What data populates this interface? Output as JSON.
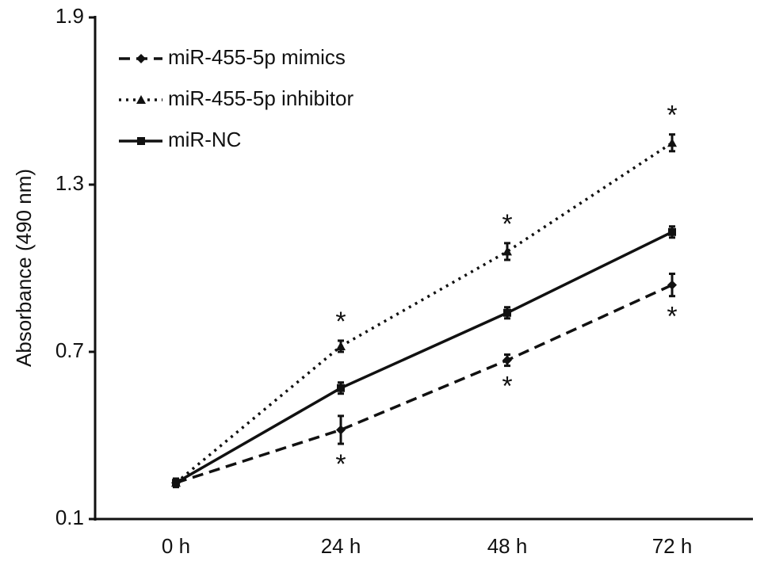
{
  "chart_data": {
    "type": "line",
    "y_label": "Absorbance (490 nm)",
    "categories": [
      "0 h",
      "24 h",
      "48 h",
      "72 h"
    ],
    "series": [
      {
        "name": "miR-455-5p mimics",
        "color": "#111111",
        "dash": "dashed",
        "marker": "diamond",
        "values": [
          0.23,
          0.42,
          0.67,
          0.94
        ],
        "errors": [
          0.015,
          0.05,
          0.02,
          0.04
        ],
        "labels": [
          null,
          "*",
          "*",
          "*"
        ],
        "label_side": "below"
      },
      {
        "name": "miR-455-5p inhibitor",
        "color": "#111111",
        "dash": "dotted",
        "marker": "triangle",
        "values": [
          0.23,
          0.72,
          1.06,
          1.45
        ],
        "errors": [
          0.015,
          0.02,
          0.03,
          0.03
        ],
        "labels": [
          null,
          "*",
          "*",
          "*"
        ],
        "label_side": "above"
      },
      {
        "name": "miR-NC",
        "color": "#111111",
        "dash": "solid",
        "marker": "square",
        "values": [
          0.23,
          0.57,
          0.84,
          1.13
        ],
        "errors": [
          0.015,
          0.02,
          0.02,
          0.02
        ]
      }
    ],
    "ylim": [
      0.1,
      1.9
    ],
    "yticks": [
      0.1,
      0.7,
      1.3,
      1.9
    ],
    "legend": "upper-left",
    "grid": false
  }
}
